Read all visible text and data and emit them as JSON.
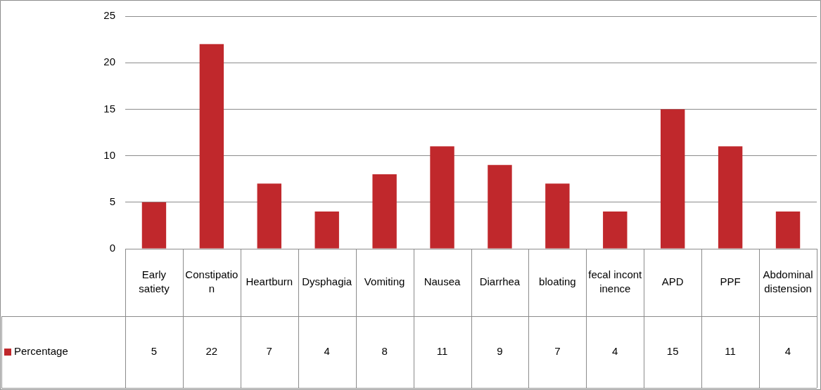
{
  "chart_data": {
    "type": "bar",
    "categories": [
      "Early satiety",
      "Constipation",
      "Heartburn",
      "Dysphagia",
      "Vomiting",
      "Nausea",
      "Diarrhea",
      "bloating",
      "fecal incontinence",
      "APD",
      "PPF",
      "Abdominal distension"
    ],
    "series": [
      {
        "name": "Percentage",
        "color": "#c0282c",
        "values": [
          5,
          22,
          7,
          4,
          8,
          11,
          9,
          7,
          4,
          15,
          11,
          4
        ]
      }
    ],
    "ylim": [
      0,
      25
    ],
    "yticks": [
      0,
      5,
      10,
      15,
      20,
      25
    ],
    "grid": "y",
    "legend": "bottom",
    "data_labels": true
  }
}
